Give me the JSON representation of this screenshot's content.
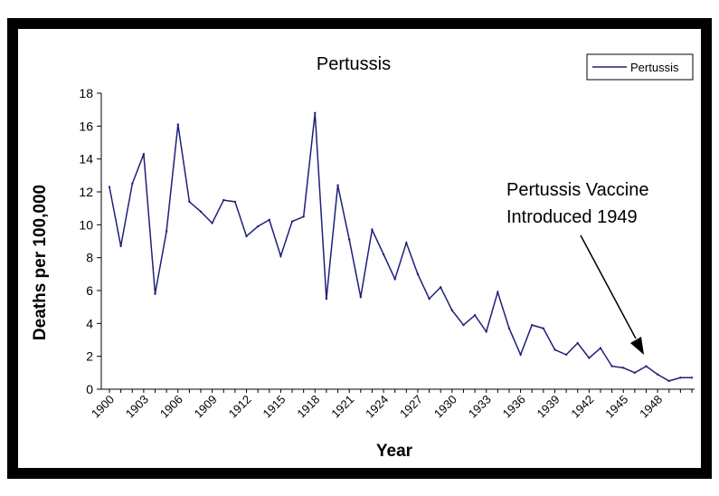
{
  "chart_data": {
    "type": "line",
    "title": "Pertussis",
    "xlabel": "Year",
    "ylabel": "Deaths per 100,000",
    "ylim": [
      0,
      18
    ],
    "yticks": [
      "0",
      "2",
      "4",
      "6",
      "8",
      "10",
      "12",
      "14",
      "16",
      "18"
    ],
    "xticks": [
      "1900",
      "1903",
      "1906",
      "1909",
      "1912",
      "1915",
      "1918",
      "1921",
      "1924",
      "1927",
      "1930",
      "1933",
      "1936",
      "1939",
      "1942",
      "1945",
      "1948"
    ],
    "grid": false,
    "legend": "top-right",
    "series": [
      {
        "name": "Pertussis",
        "color": "#1f1f7a",
        "x": [
          1900,
          1901,
          1902,
          1903,
          1904,
          1905,
          1906,
          1907,
          1908,
          1909,
          1910,
          1911,
          1912,
          1913,
          1914,
          1915,
          1916,
          1917,
          1918,
          1919,
          1920,
          1921,
          1922,
          1923,
          1924,
          1925,
          1926,
          1927,
          1928,
          1929,
          1930,
          1931,
          1932,
          1933,
          1934,
          1935,
          1936,
          1937,
          1938,
          1939,
          1940,
          1941,
          1942,
          1943,
          1944,
          1945,
          1946,
          1947,
          1948,
          1949,
          1950,
          1951
        ],
        "values": [
          12.3,
          8.7,
          12.5,
          14.3,
          5.8,
          9.6,
          16.1,
          11.4,
          10.8,
          10.1,
          11.5,
          11.4,
          9.3,
          9.9,
          10.3,
          8.1,
          10.2,
          10.5,
          16.8,
          5.5,
          12.4,
          9.1,
          5.6,
          9.7,
          8.2,
          6.7,
          8.9,
          7.0,
          5.5,
          6.2,
          4.8,
          3.9,
          4.5,
          3.5,
          5.9,
          3.7,
          2.1,
          3.9,
          3.7,
          2.4,
          2.1,
          2.8,
          1.9,
          2.5,
          1.4,
          1.3,
          1.0,
          1.4,
          0.9,
          0.5,
          0.7,
          0.7
        ]
      }
    ],
    "annotation": {
      "lines": [
        "Pertussis Vaccine",
        "Introduced 1949"
      ]
    }
  }
}
